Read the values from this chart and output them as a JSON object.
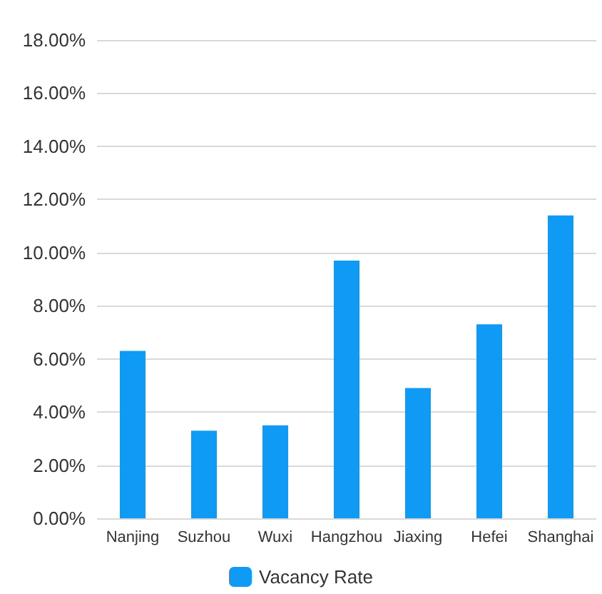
{
  "chart_data": {
    "type": "bar",
    "categories": [
      "Nanjing",
      "Suzhou",
      "Wuxi",
      "Hangzhou",
      "Jiaxing",
      "Hefei",
      "Shanghai"
    ],
    "series": [
      {
        "name": "Vacancy Rate",
        "color": "#0f9af5",
        "values": [
          6.3,
          3.3,
          3.5,
          9.7,
          4.9,
          7.3,
          11.4
        ]
      }
    ],
    "ylim": [
      0,
      18
    ],
    "yticks": [
      {
        "value": 0,
        "label": "0.00%"
      },
      {
        "value": 2,
        "label": "2.00%"
      },
      {
        "value": 4,
        "label": "4.00%"
      },
      {
        "value": 6,
        "label": "6.00%"
      },
      {
        "value": 8,
        "label": "8.00%"
      },
      {
        "value": 10,
        "label": "10.00%"
      },
      {
        "value": 12,
        "label": "12.00%"
      },
      {
        "value": 14,
        "label": "14.00%"
      },
      {
        "value": 16,
        "label": "16.00%"
      },
      {
        "value": 18,
        "label": "18.00%"
      }
    ],
    "grid": "y",
    "legend": "bottom"
  }
}
